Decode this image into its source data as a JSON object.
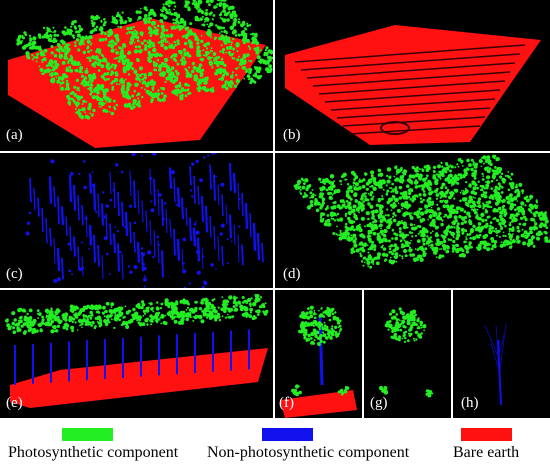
{
  "panels": [
    {
      "id": "a",
      "label": "(a)"
    },
    {
      "id": "b",
      "label": "(b)"
    },
    {
      "id": "c",
      "label": "(c)"
    },
    {
      "id": "d",
      "label": "(d)"
    },
    {
      "id": "e",
      "label": "(e)"
    },
    {
      "id": "f",
      "label": "(f)"
    },
    {
      "id": "g",
      "label": "(g)"
    },
    {
      "id": "h",
      "label": "(h)"
    }
  ],
  "legend": [
    {
      "label": "Photosynthetic component",
      "color": "#22ee22"
    },
    {
      "label": "Non-photosynthetic component",
      "color": "#1111ee"
    },
    {
      "label": "Bare earth",
      "color": "#ff1111"
    }
  ],
  "colors": {
    "photosynthetic": "#22ee22",
    "non_photosynthetic": "#1111ee",
    "bare_earth": "#ff1111",
    "background": "#000000"
  }
}
